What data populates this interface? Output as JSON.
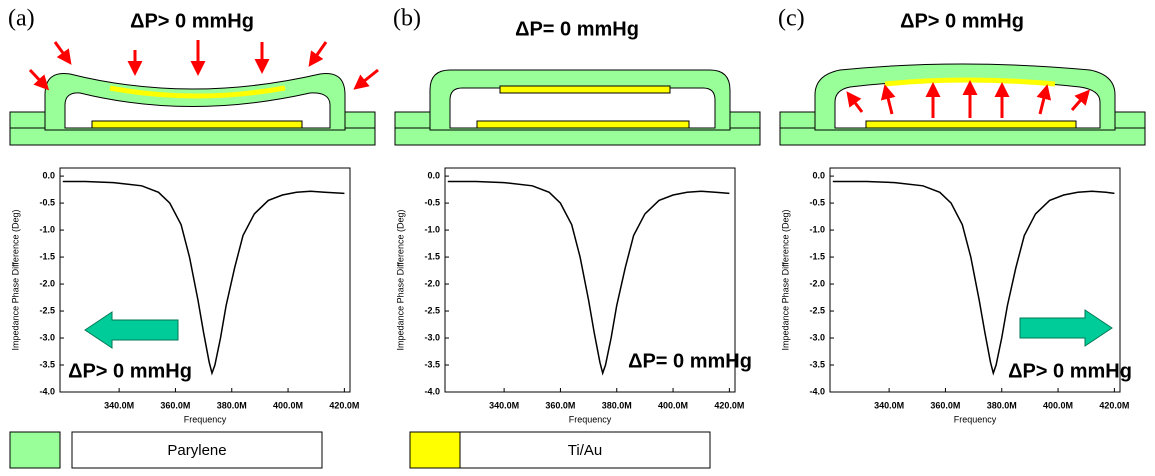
{
  "chart_data": [
    {
      "type": "line",
      "panel_label": "(a)",
      "diagram_title": "ΔP> 0 mmHg",
      "annotation": "ΔP> 0 mmHg",
      "x_label": "Frequency",
      "y_label": "Impedance Phase Difference (Deg)",
      "x": [
        320000000,
        328000000,
        338000000,
        348000000,
        354000000,
        358000000,
        362000000,
        365000000,
        368000000,
        370000000,
        372000000,
        373000000,
        374000000,
        376000000,
        378000000,
        381000000,
        384000000,
        388000000,
        393000000,
        398000000,
        403000000,
        408000000,
        413000000,
        420000000
      ],
      "series": [
        {
          "color": "#000000",
          "values": [
            -0.1,
            -0.1,
            -0.12,
            -0.18,
            -0.3,
            -0.5,
            -0.9,
            -1.5,
            -2.3,
            -2.9,
            -3.45,
            -3.65,
            -3.5,
            -3.0,
            -2.4,
            -1.7,
            -1.1,
            -0.7,
            -0.45,
            -0.35,
            -0.3,
            -0.28,
            -0.3,
            -0.32
          ]
        }
      ],
      "xlim": [
        319000000,
        422000000
      ],
      "ylim": [
        -4,
        0.15
      ],
      "xticks": [
        {
          "value": 340000000,
          "label": "340.0M"
        },
        {
          "value": 360000000,
          "label": "360.0M"
        },
        {
          "value": 380000000,
          "label": "380.0M"
        },
        {
          "value": 400000000,
          "label": "400.0M"
        },
        {
          "value": 420000000,
          "label": "420.0M"
        }
      ],
      "yticks": [
        {
          "value": 0,
          "label": "0.0"
        },
        -0.5,
        {
          "value": -1,
          "label": "-1.0"
        },
        -1.5,
        {
          "value": -2,
          "label": "-2.0"
        },
        -2.5,
        {
          "value": -3,
          "label": "-3.0"
        },
        -3.5,
        {
          "value": -4,
          "label": "-4.0"
        }
      ]
    },
    {
      "type": "line",
      "panel_label": "(b)",
      "diagram_title": "ΔP= 0 mmHg",
      "annotation": "ΔP= 0 mmHg",
      "x_label": "Frequency",
      "y_label": "Impedance Phase Difference (Deg)",
      "x": [
        320000000,
        330000000,
        340000000,
        350000000,
        356000000,
        360000000,
        364000000,
        367000000,
        370000000,
        372000000,
        374000000,
        375000000,
        376000000,
        378000000,
        380000000,
        383000000,
        386000000,
        390000000,
        395000000,
        400000000,
        405000000,
        410000000,
        415000000,
        420000000
      ],
      "series": [
        {
          "color": "#000000",
          "values": [
            -0.1,
            -0.1,
            -0.12,
            -0.18,
            -0.3,
            -0.5,
            -0.9,
            -1.5,
            -2.3,
            -2.9,
            -3.45,
            -3.65,
            -3.5,
            -3.0,
            -2.4,
            -1.7,
            -1.1,
            -0.7,
            -0.45,
            -0.35,
            -0.3,
            -0.28,
            -0.3,
            -0.32
          ]
        }
      ],
      "xlim": [
        319000000,
        422000000
      ],
      "ylim": [
        -4,
        0.15
      ],
      "xticks": [
        {
          "value": 340000000,
          "label": "340.0M"
        },
        {
          "value": 360000000,
          "label": "360.0M"
        },
        {
          "value": 380000000,
          "label": "380.0M"
        },
        {
          "value": 400000000,
          "label": "400.0M"
        },
        {
          "value": 420000000,
          "label": "420.0M"
        }
      ],
      "yticks": [
        {
          "value": 0,
          "label": "0.0"
        },
        -0.5,
        {
          "value": -1,
          "label": "-1.0"
        },
        -1.5,
        {
          "value": -2,
          "label": "-2.0"
        },
        -2.5,
        {
          "value": -3,
          "label": "-3.0"
        },
        -3.5,
        {
          "value": -4,
          "label": "-4.0"
        }
      ]
    },
    {
      "type": "line",
      "panel_label": "(c)",
      "diagram_title": "ΔP> 0 mmHg",
      "annotation": "ΔP> 0 mmHg",
      "x_label": "Frequency",
      "y_label": "Impedance Phase Difference (Deg)",
      "x": [
        320000000,
        332000000,
        342000000,
        352000000,
        358000000,
        362000000,
        366000000,
        369000000,
        372000000,
        374000000,
        376000000,
        377000000,
        378000000,
        380000000,
        382000000,
        385000000,
        388000000,
        392000000,
        397000000,
        402000000,
        407000000,
        412000000,
        417000000,
        420000000
      ],
      "series": [
        {
          "color": "#000000",
          "values": [
            -0.1,
            -0.1,
            -0.12,
            -0.18,
            -0.3,
            -0.5,
            -0.9,
            -1.5,
            -2.3,
            -2.9,
            -3.45,
            -3.65,
            -3.5,
            -3.0,
            -2.4,
            -1.7,
            -1.1,
            -0.7,
            -0.45,
            -0.35,
            -0.3,
            -0.28,
            -0.3,
            -0.32
          ]
        }
      ],
      "xlim": [
        319000000,
        422000000
      ],
      "ylim": [
        -4,
        0.15
      ],
      "xticks": [
        {
          "value": 340000000,
          "label": "340.0M"
        },
        {
          "value": 360000000,
          "label": "360.0M"
        },
        {
          "value": 380000000,
          "label": "380.0M"
        },
        {
          "value": 400000000,
          "label": "400.0M"
        },
        {
          "value": 420000000,
          "label": "420.0M"
        }
      ],
      "yticks": [
        {
          "value": 0,
          "label": "0.0"
        },
        -0.5,
        {
          "value": -1,
          "label": "-1.0"
        },
        -1.5,
        {
          "value": -2,
          "label": "-2.0"
        },
        -2.5,
        {
          "value": -3,
          "label": "-3.0"
        },
        -3.5,
        {
          "value": -4,
          "label": "-4.0"
        }
      ]
    }
  ],
  "legend": [
    {
      "label": "Parylene",
      "color": "#99ff99"
    },
    {
      "label": "Ti/Au",
      "color": "#ffff00"
    }
  ]
}
